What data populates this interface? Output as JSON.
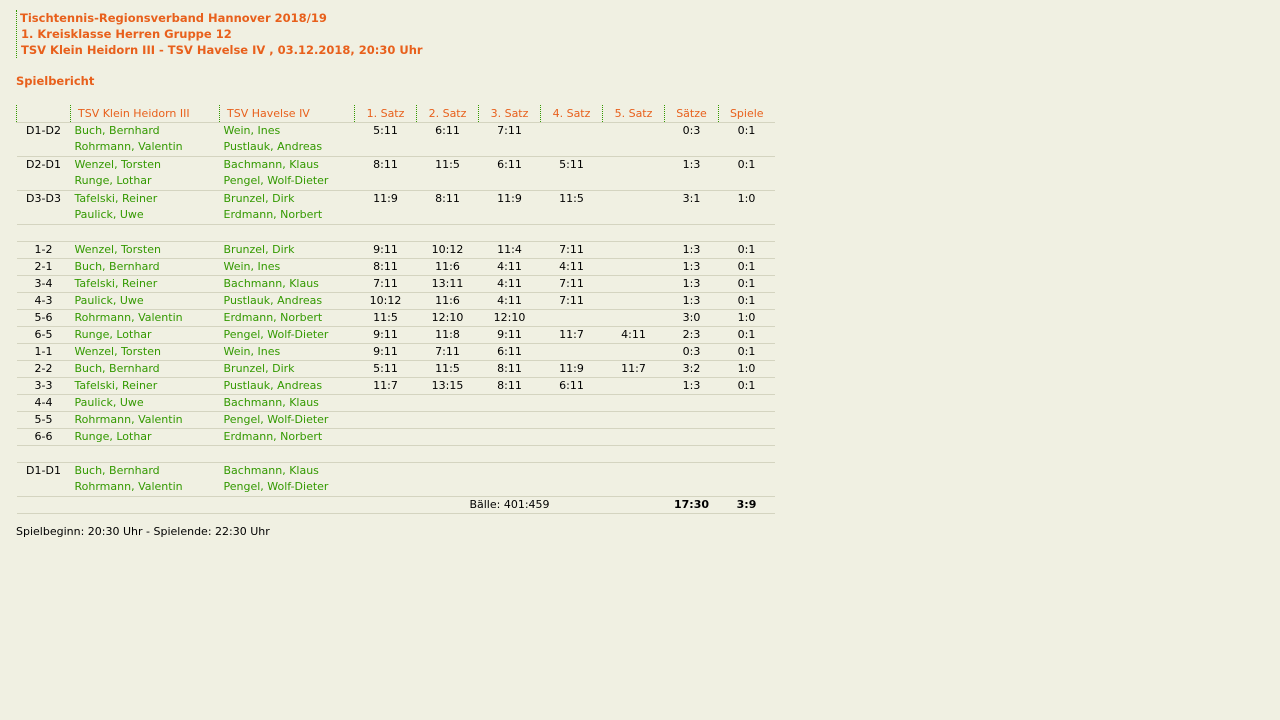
{
  "header": {
    "line1": "Tischtennis-Regionsverband Hannover 2018/19",
    "line2": "1. Kreisklasse Herren Gruppe 12",
    "line3": "TSV Klein Heidorn III - TSV Havelse IV , 03.12.2018, 20:30 Uhr"
  },
  "report_title": "Spielbericht",
  "colors": {
    "accent": "#e8601c",
    "player": "#339900",
    "background": "#f0f0e2"
  },
  "table": {
    "columns": [
      "",
      "TSV Klein Heidorn III",
      "TSV Havelse IV",
      "1. Satz",
      "2. Satz",
      "3. Satz",
      "4. Satz",
      "5. Satz",
      "Sätze",
      "Spiele"
    ],
    "rows": [
      {
        "pos": "D1-D2",
        "home": [
          "Buch, Bernhard",
          "Rohrmann, Valentin"
        ],
        "away": [
          "Wein, Ines",
          "Pustlauk, Andreas"
        ],
        "sets": [
          "5:11",
          "6:11",
          "7:11",
          "",
          ""
        ],
        "saetze": "0:3",
        "spiele": "0:1"
      },
      {
        "pos": "D2-D1",
        "home": [
          "Wenzel, Torsten",
          "Runge, Lothar"
        ],
        "away": [
          "Bachmann, Klaus",
          "Pengel, Wolf-Dieter"
        ],
        "sets": [
          "8:11",
          "11:5",
          "6:11",
          "5:11",
          ""
        ],
        "saetze": "1:3",
        "spiele": "0:1"
      },
      {
        "pos": "D3-D3",
        "home": [
          "Tafelski, Reiner",
          "Paulick, Uwe"
        ],
        "away": [
          "Brunzel, Dirk",
          "Erdmann, Norbert"
        ],
        "sets": [
          "11:9",
          "8:11",
          "11:9",
          "11:5",
          ""
        ],
        "saetze": "3:1",
        "spiele": "1:0"
      },
      {
        "spacer": true
      },
      {
        "pos": "1-2",
        "home": [
          "Wenzel, Torsten"
        ],
        "away": [
          "Brunzel, Dirk"
        ],
        "sets": [
          "9:11",
          "10:12",
          "11:4",
          "7:11",
          ""
        ],
        "saetze": "1:3",
        "spiele": "0:1"
      },
      {
        "pos": "2-1",
        "home": [
          "Buch, Bernhard"
        ],
        "away": [
          "Wein, Ines"
        ],
        "sets": [
          "8:11",
          "11:6",
          "4:11",
          "4:11",
          ""
        ],
        "saetze": "1:3",
        "spiele": "0:1"
      },
      {
        "pos": "3-4",
        "home": [
          "Tafelski, Reiner"
        ],
        "away": [
          "Bachmann, Klaus"
        ],
        "sets": [
          "7:11",
          "13:11",
          "4:11",
          "7:11",
          ""
        ],
        "saetze": "1:3",
        "spiele": "0:1"
      },
      {
        "pos": "4-3",
        "home": [
          "Paulick, Uwe"
        ],
        "away": [
          "Pustlauk, Andreas"
        ],
        "sets": [
          "10:12",
          "11:6",
          "4:11",
          "7:11",
          ""
        ],
        "saetze": "1:3",
        "spiele": "0:1"
      },
      {
        "pos": "5-6",
        "home": [
          "Rohrmann, Valentin"
        ],
        "away": [
          "Erdmann, Norbert"
        ],
        "sets": [
          "11:5",
          "12:10",
          "12:10",
          "",
          ""
        ],
        "saetze": "3:0",
        "spiele": "1:0"
      },
      {
        "pos": "6-5",
        "home": [
          "Runge, Lothar"
        ],
        "away": [
          "Pengel, Wolf-Dieter"
        ],
        "sets": [
          "9:11",
          "11:8",
          "9:11",
          "11:7",
          "4:11"
        ],
        "saetze": "2:3",
        "spiele": "0:1"
      },
      {
        "pos": "1-1",
        "home": [
          "Wenzel, Torsten"
        ],
        "away": [
          "Wein, Ines"
        ],
        "sets": [
          "9:11",
          "7:11",
          "6:11",
          "",
          ""
        ],
        "saetze": "0:3",
        "spiele": "0:1"
      },
      {
        "pos": "2-2",
        "home": [
          "Buch, Bernhard"
        ],
        "away": [
          "Brunzel, Dirk"
        ],
        "sets": [
          "5:11",
          "11:5",
          "8:11",
          "11:9",
          "11:7"
        ],
        "saetze": "3:2",
        "spiele": "1:0"
      },
      {
        "pos": "3-3",
        "home": [
          "Tafelski, Reiner"
        ],
        "away": [
          "Pustlauk, Andreas"
        ],
        "sets": [
          "11:7",
          "13:15",
          "8:11",
          "6:11",
          ""
        ],
        "saetze": "1:3",
        "spiele": "0:1"
      },
      {
        "pos": "4-4",
        "home": [
          "Paulick, Uwe"
        ],
        "away": [
          "Bachmann, Klaus"
        ],
        "sets": [
          "",
          "",
          "",
          "",
          ""
        ],
        "saetze": "",
        "spiele": ""
      },
      {
        "pos": "5-5",
        "home": [
          "Rohrmann, Valentin"
        ],
        "away": [
          "Pengel, Wolf-Dieter"
        ],
        "sets": [
          "",
          "",
          "",
          "",
          ""
        ],
        "saetze": "",
        "spiele": ""
      },
      {
        "pos": "6-6",
        "home": [
          "Runge, Lothar"
        ],
        "away": [
          "Erdmann, Norbert"
        ],
        "sets": [
          "",
          "",
          "",
          "",
          ""
        ],
        "saetze": "",
        "spiele": ""
      },
      {
        "spacer": true
      },
      {
        "pos": "D1-D1",
        "home": [
          "Buch, Bernhard",
          "Rohrmann, Valentin"
        ],
        "away": [
          "Bachmann, Klaus",
          "Pengel, Wolf-Dieter"
        ],
        "sets": [
          "",
          "",
          "",
          "",
          ""
        ],
        "saetze": "",
        "spiele": ""
      }
    ],
    "totals": {
      "balls": "Bälle: 401:459",
      "saetze": "17:30",
      "spiele": "3:9"
    }
  },
  "footer": "Spielbeginn: 20:30 Uhr - Spielende: 22:30 Uhr"
}
